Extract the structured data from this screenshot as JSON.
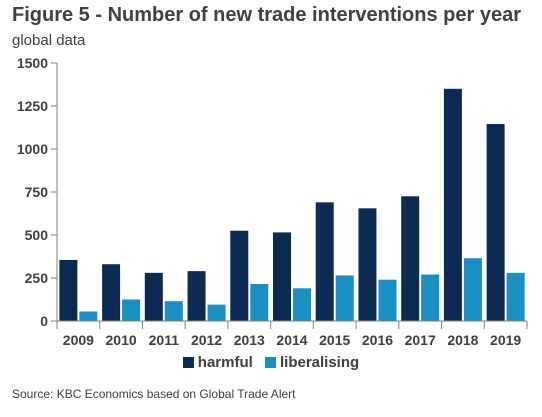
{
  "header": {
    "title": "Figure 5 - Number of new trade interventions per year",
    "subtitle": "global data"
  },
  "colors": {
    "harmful": "#0d2b52",
    "liberalising": "#1a8fc1",
    "axis": "#808080"
  },
  "chart_data": {
    "type": "bar",
    "title": "Figure 5 - Number of new trade interventions per year",
    "subtitle": "global data",
    "categories": [
      "2009",
      "2010",
      "2011",
      "2012",
      "2013",
      "2014",
      "2015",
      "2016",
      "2017",
      "2018",
      "2019"
    ],
    "series": [
      {
        "name": "harmful",
        "values": [
          355,
          330,
          280,
          290,
          525,
          515,
          690,
          655,
          725,
          1350,
          1145
        ]
      },
      {
        "name": "liberalising",
        "values": [
          55,
          125,
          115,
          95,
          215,
          190,
          265,
          240,
          270,
          365,
          280
        ]
      }
    ],
    "ylim": [
      0,
      1500
    ],
    "yticks": [
      0,
      250,
      500,
      750,
      1000,
      1250,
      1500
    ],
    "grid": false,
    "legend_position": "bottom"
  },
  "legend": {
    "harmful": "harmful",
    "liberalising": "liberalising"
  },
  "source": "Source: KBC Economics based on Global Trade Alert"
}
